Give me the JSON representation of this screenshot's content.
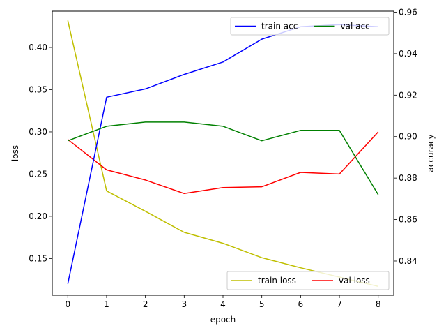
{
  "chart_data": {
    "type": "line",
    "xlabel": "epoch",
    "x": [
      0,
      1,
      2,
      3,
      4,
      5,
      6,
      7,
      8
    ],
    "xlim": [
      -0.4,
      8.4
    ],
    "xticks": [
      "0",
      "1",
      "2",
      "3",
      "4",
      "5",
      "6",
      "7",
      "8"
    ],
    "left_axis": {
      "label": "loss",
      "ylim": [
        0.1065,
        0.443
      ],
      "ticks": [
        {
          "v": 0.15,
          "label": "0.15"
        },
        {
          "v": 0.2,
          "label": "0.20"
        },
        {
          "v": 0.25,
          "label": "0.25"
        },
        {
          "v": 0.3,
          "label": "0.30"
        },
        {
          "v": 0.35,
          "label": "0.35"
        },
        {
          "v": 0.4,
          "label": "0.40"
        }
      ],
      "legend_position": "lower-right",
      "series": [
        {
          "name": "train loss",
          "color": "#bfbf00",
          "values": [
            0.432,
            0.23,
            0.206,
            0.181,
            0.168,
            0.151,
            0.139,
            0.128,
            0.117
          ]
        },
        {
          "name": "val loss",
          "color": "#ff0000",
          "values": [
            0.291,
            0.255,
            0.243,
            0.227,
            0.234,
            0.235,
            0.252,
            0.25,
            0.3
          ]
        }
      ]
    },
    "right_axis": {
      "label": "accuracy",
      "ylim": [
        0.8235,
        0.9605
      ],
      "ticks": [
        {
          "v": 0.84,
          "label": "0.84"
        },
        {
          "v": 0.86,
          "label": "0.86"
        },
        {
          "v": 0.88,
          "label": "0.88"
        },
        {
          "v": 0.9,
          "label": "0.90"
        },
        {
          "v": 0.92,
          "label": "0.92"
        },
        {
          "v": 0.94,
          "label": "0.94"
        },
        {
          "v": 0.96,
          "label": "0.96"
        }
      ],
      "legend_position": "upper-right",
      "series": [
        {
          "name": "train acc",
          "color": "#0000ff",
          "values": [
            0.829,
            0.919,
            0.923,
            0.93,
            0.936,
            0.947,
            0.953,
            0.954,
            0.953
          ]
        },
        {
          "name": "val acc",
          "color": "#008000",
          "values": [
            0.898,
            0.905,
            0.907,
            0.907,
            0.905,
            0.898,
            0.903,
            0.903,
            0.872
          ]
        }
      ]
    }
  }
}
